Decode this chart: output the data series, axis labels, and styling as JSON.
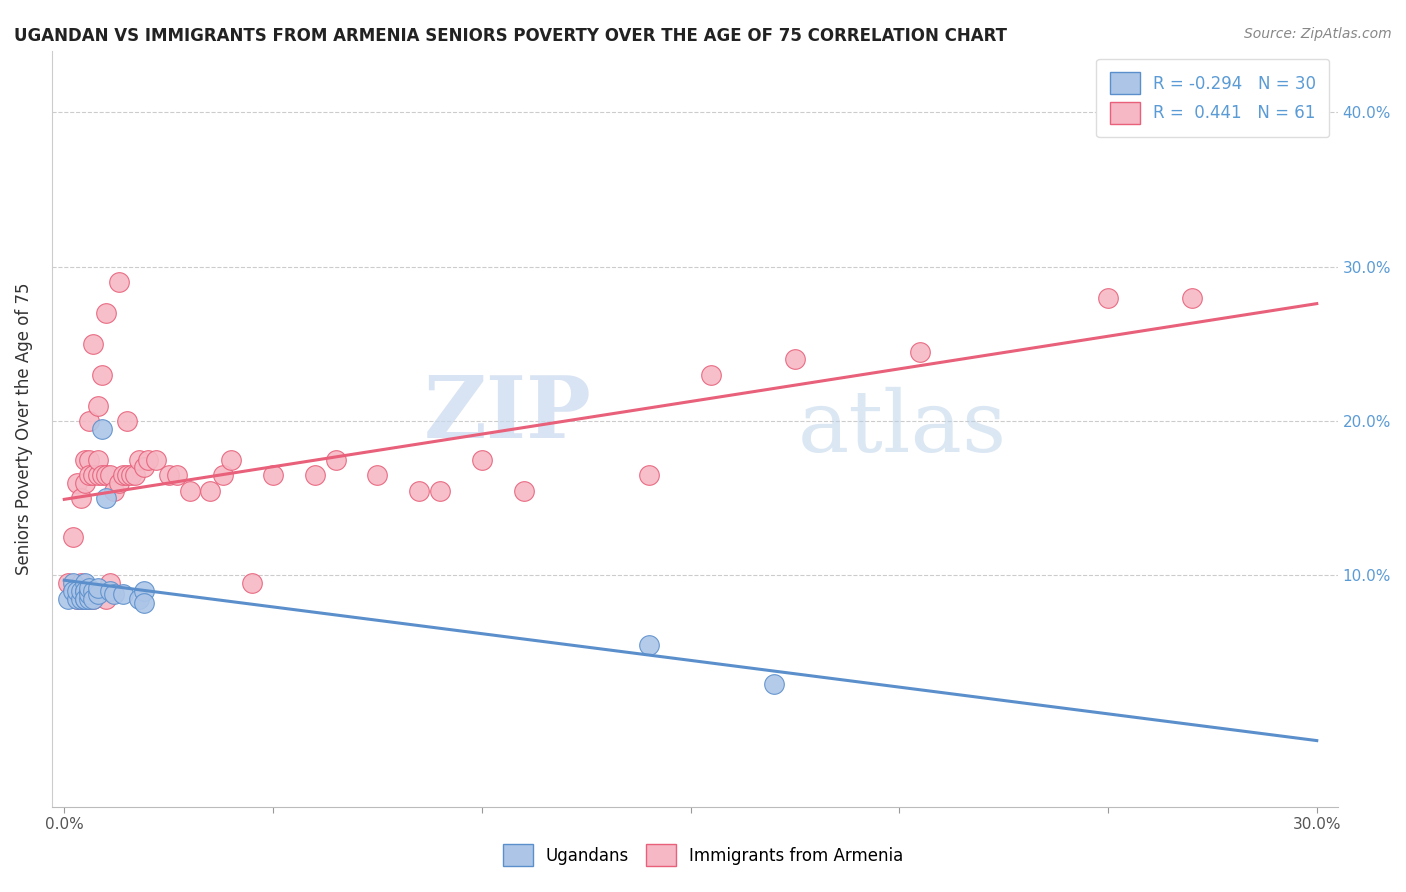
{
  "title": "UGANDAN VS IMMIGRANTS FROM ARMENIA SENIORS POVERTY OVER THE AGE OF 75 CORRELATION CHART",
  "source": "Source: ZipAtlas.com",
  "ylabel": "Seniors Poverty Over the Age of 75",
  "watermark_zip": "ZIP",
  "watermark_atlas": "atlas",
  "xlim": [
    -0.003,
    0.305
  ],
  "ylim": [
    -0.05,
    0.44
  ],
  "y_ticks_right": [
    0.1,
    0.2,
    0.3,
    0.4
  ],
  "y_tick_labels_right": [
    "10.0%",
    "20.0%",
    "30.0%",
    "40.0%"
  ],
  "ugandan_color": "#adc6e8",
  "armenia_color": "#f5b8c4",
  "ugandan_line_color": "#5b8fcc",
  "armenia_line_color": "#e8607a",
  "legend_text1": "R = -0.294   N = 30",
  "legend_text2": "R =  0.441   N = 61",
  "ugandan_x": [
    0.001,
    0.002,
    0.002,
    0.003,
    0.003,
    0.004,
    0.004,
    0.005,
    0.005,
    0.005,
    0.005,
    0.005,
    0.006,
    0.006,
    0.006,
    0.006,
    0.007,
    0.007,
    0.008,
    0.008,
    0.009,
    0.01,
    0.011,
    0.012,
    0.014,
    0.018,
    0.019,
    0.019,
    0.14,
    0.17
  ],
  "ugandan_y": [
    0.085,
    0.095,
    0.09,
    0.085,
    0.09,
    0.085,
    0.09,
    0.085,
    0.09,
    0.095,
    0.09,
    0.085,
    0.09,
    0.085,
    0.088,
    0.092,
    0.09,
    0.085,
    0.088,
    0.092,
    0.195,
    0.15,
    0.09,
    0.088,
    0.088,
    0.085,
    0.09,
    0.082,
    0.055,
    0.03
  ],
  "armenia_x": [
    0.001,
    0.002,
    0.002,
    0.003,
    0.003,
    0.004,
    0.004,
    0.004,
    0.005,
    0.005,
    0.005,
    0.006,
    0.006,
    0.006,
    0.006,
    0.007,
    0.007,
    0.007,
    0.008,
    0.008,
    0.008,
    0.009,
    0.009,
    0.01,
    0.01,
    0.01,
    0.011,
    0.011,
    0.012,
    0.013,
    0.013,
    0.014,
    0.015,
    0.015,
    0.016,
    0.017,
    0.018,
    0.019,
    0.02,
    0.022,
    0.025,
    0.027,
    0.03,
    0.035,
    0.038,
    0.04,
    0.045,
    0.05,
    0.06,
    0.065,
    0.075,
    0.085,
    0.09,
    0.1,
    0.11,
    0.14,
    0.155,
    0.175,
    0.205,
    0.25,
    0.27
  ],
  "armenia_y": [
    0.095,
    0.09,
    0.125,
    0.085,
    0.16,
    0.085,
    0.095,
    0.15,
    0.085,
    0.16,
    0.175,
    0.085,
    0.175,
    0.165,
    0.2,
    0.085,
    0.165,
    0.25,
    0.165,
    0.175,
    0.21,
    0.165,
    0.23,
    0.085,
    0.165,
    0.27,
    0.095,
    0.165,
    0.155,
    0.16,
    0.29,
    0.165,
    0.165,
    0.2,
    0.165,
    0.165,
    0.175,
    0.17,
    0.175,
    0.175,
    0.165,
    0.165,
    0.155,
    0.155,
    0.165,
    0.175,
    0.095,
    0.165,
    0.165,
    0.175,
    0.165,
    0.155,
    0.155,
    0.175,
    0.155,
    0.165,
    0.23,
    0.24,
    0.245,
    0.28,
    0.28
  ]
}
